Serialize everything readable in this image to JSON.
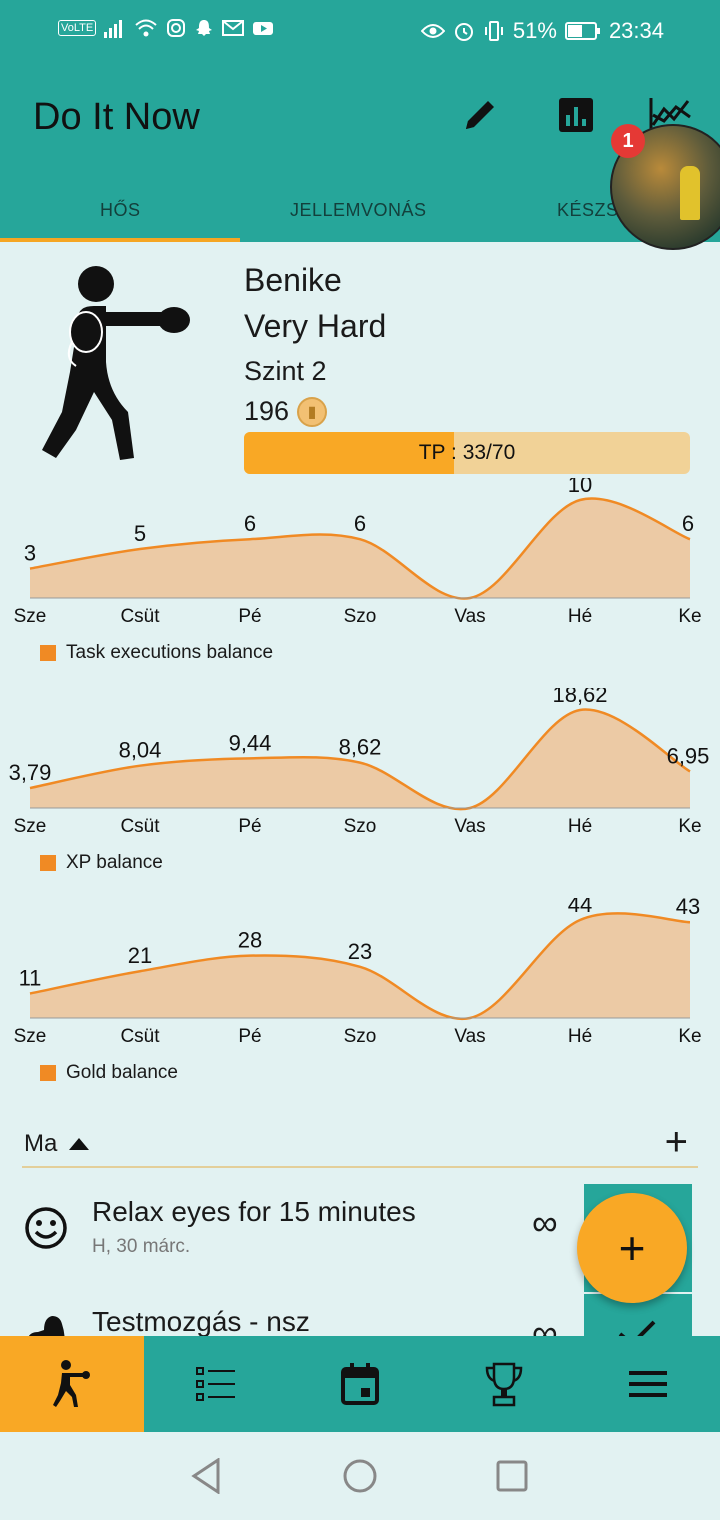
{
  "status": {
    "battery": "51%",
    "time": "23:34",
    "volte": "VoLTE"
  },
  "app": {
    "title": "Do It Now",
    "actions": [
      "pencil-icon",
      "bar-chart-icon",
      "line-chart-icon"
    ]
  },
  "tabs": [
    {
      "label": "HŐS",
      "active": true
    },
    {
      "label": "JELLEMVONÁS",
      "active": false
    },
    {
      "label": "KÉSZS",
      "active": false
    }
  ],
  "bubble": {
    "badge": "1"
  },
  "hero": {
    "name": "Benike",
    "difficulty": "Very Hard",
    "level": "Szint 2",
    "gold": "196",
    "tp_label": "TP : 33/70",
    "tp_value": 33,
    "tp_max": 70
  },
  "chart_data": [
    {
      "type": "area",
      "categories": [
        "Sze",
        "Csüt",
        "Pé",
        "Szo",
        "Vas",
        "Hé",
        "Ke"
      ],
      "values": [
        3,
        5,
        6,
        6,
        0,
        10,
        6
      ],
      "labels": [
        "3",
        "5",
        "6",
        "6",
        "",
        "10",
        "6"
      ],
      "legend": "Task executions balance",
      "color": "#f08a24",
      "fill": "#eccaa5"
    },
    {
      "type": "area",
      "categories": [
        "Sze",
        "Csüt",
        "Pé",
        "Szo",
        "Vas",
        "Hé",
        "Ke"
      ],
      "values": [
        3.79,
        8.04,
        9.44,
        8.62,
        0,
        18.62,
        6.95
      ],
      "labels": [
        "3,79",
        "8,04",
        "9,44",
        "8,62",
        "",
        "18,62",
        "6,95"
      ],
      "legend": "XP balance",
      "color": "#f08a24",
      "fill": "#eccaa5"
    },
    {
      "type": "area",
      "categories": [
        "Sze",
        "Csüt",
        "Pé",
        "Szo",
        "Vas",
        "Hé",
        "Ke"
      ],
      "values": [
        11,
        21,
        28,
        23,
        0,
        44,
        43
      ],
      "labels": [
        "11",
        "21",
        "28",
        "23",
        "",
        "44",
        "43"
      ],
      "legend": "Gold balance",
      "color": "#f08a24",
      "fill": "#eccaa5"
    }
  ],
  "list": {
    "header": "Ma",
    "add_label": "+",
    "tasks": [
      {
        "title": "Relax eyes for 15 minutes",
        "date": "H, 30 márc.",
        "repeat": "∞",
        "icon": "smiley-icon"
      },
      {
        "title": "Testmozgás - nsz",
        "date": "",
        "repeat": "∞",
        "icon": "muscle-icon"
      }
    ]
  },
  "fab_label": "+",
  "bottom_nav": [
    "hero-icon",
    "task-list-icon",
    "calendar-icon",
    "trophy-icon",
    "menu-icon"
  ]
}
